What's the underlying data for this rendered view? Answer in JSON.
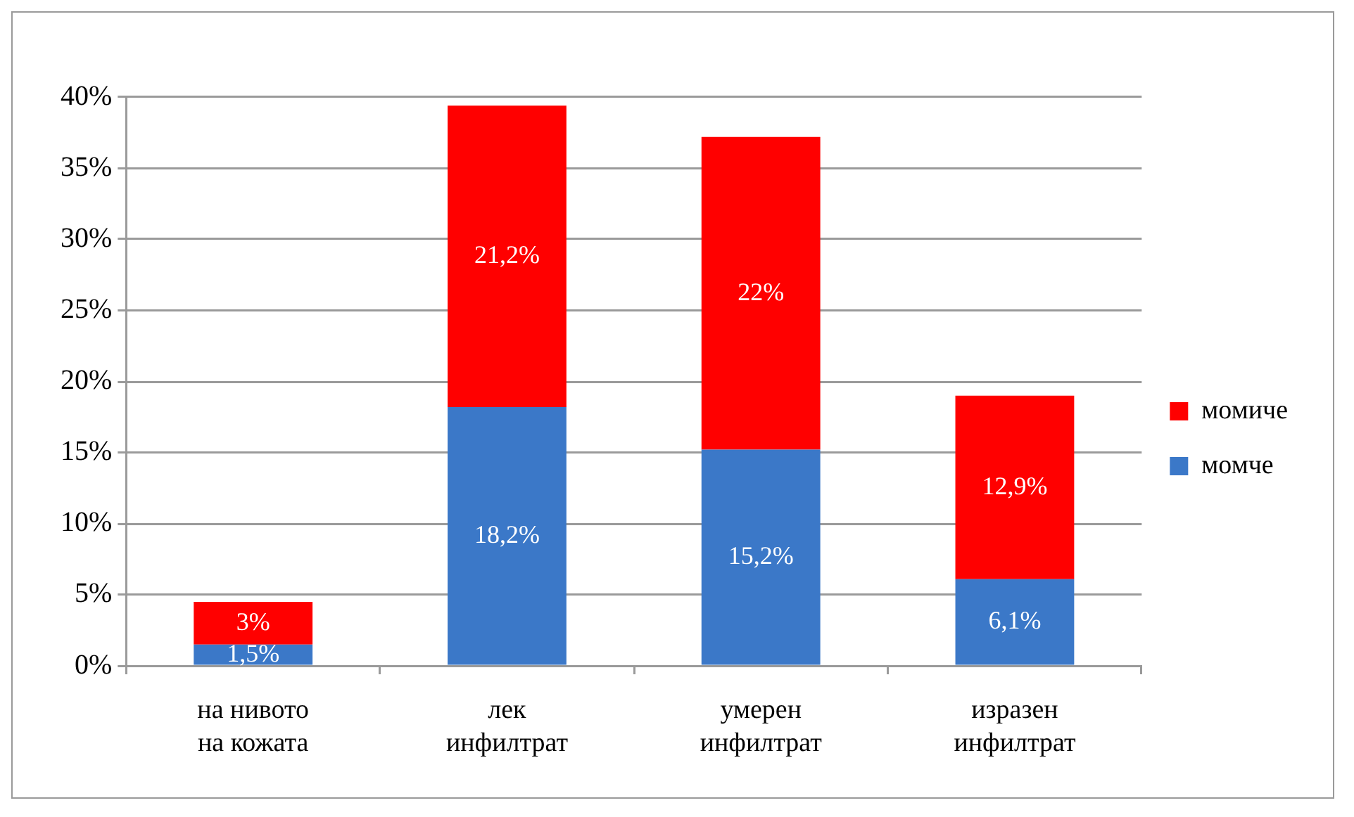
{
  "chart_data": {
    "type": "bar",
    "stacked": true,
    "categories": [
      "на нивото на кожата",
      "лек инфилтрат",
      "умерен инфилтрат",
      "изразен инфилтрат"
    ],
    "series": [
      {
        "name": "момче",
        "color": "#3b78c8",
        "values": [
          1.5,
          18.2,
          15.2,
          6.1
        ],
        "value_labels": [
          "1,5%",
          "18,2%",
          "15,2%",
          "6,1%"
        ]
      },
      {
        "name": "момиче",
        "color": "#ff0000",
        "values": [
          3,
          21.2,
          22,
          12.9
        ],
        "value_labels": [
          "3%",
          "21,2%",
          "22%",
          "12,9%"
        ]
      }
    ],
    "ylim": [
      0,
      40
    ],
    "yticks": [
      {
        "value": 0,
        "label": "0%"
      },
      {
        "value": 5,
        "label": "5%"
      },
      {
        "value": 10,
        "label": "10%"
      },
      {
        "value": 15,
        "label": "15%"
      },
      {
        "value": 20,
        "label": "20%"
      },
      {
        "value": 25,
        "label": "25%"
      },
      {
        "value": 30,
        "label": "30%"
      },
      {
        "value": 35,
        "label": "35%"
      },
      {
        "value": 40,
        "label": "40%"
      }
    ],
    "grid": "y",
    "legend": "right"
  }
}
